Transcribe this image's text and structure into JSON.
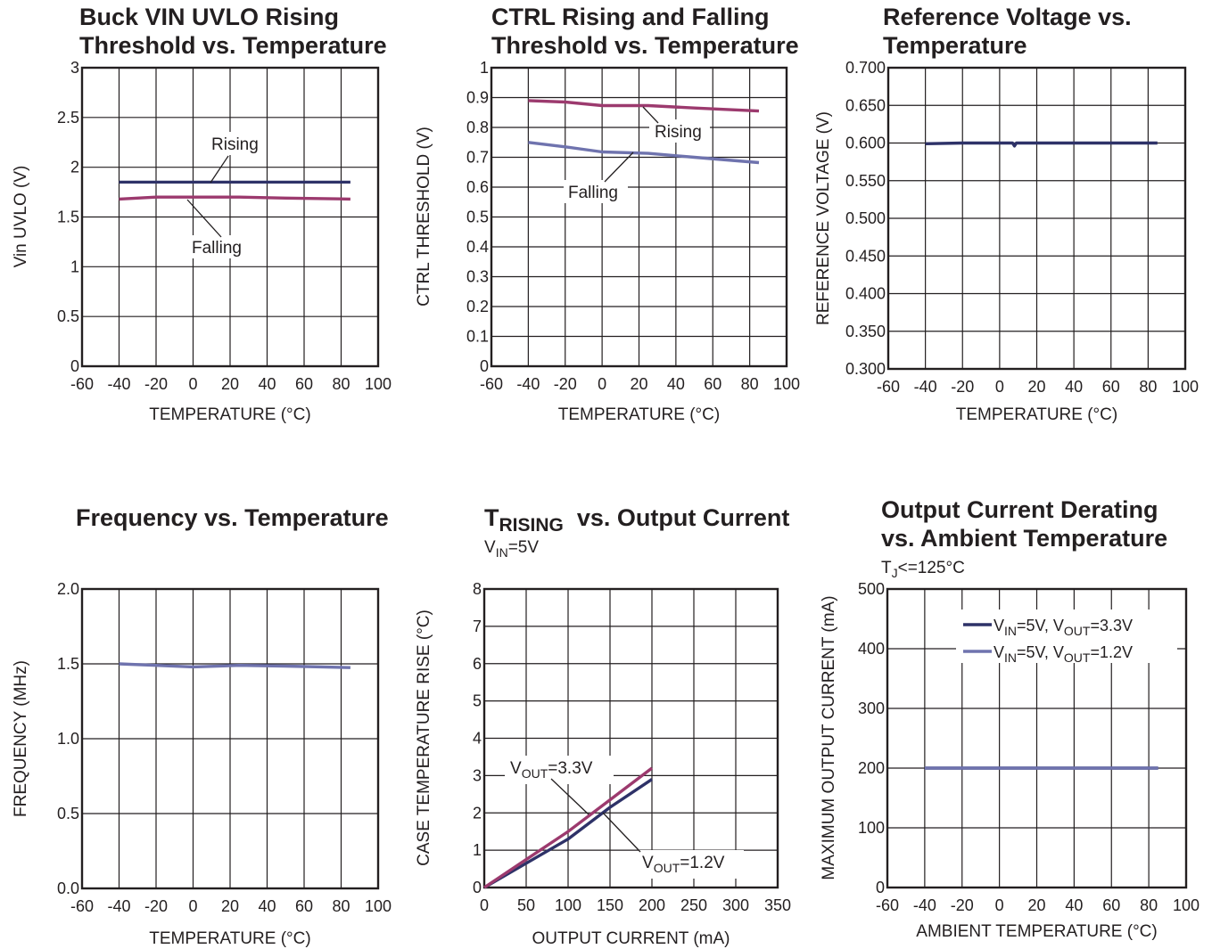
{
  "chart_data": [
    {
      "type": "line",
      "title": "Buck VIN UVLO Rising Threshold vs. Temperature",
      "title_lines": [
        "Buck VIN UVLO Rising",
        "Threshold vs. Temperature"
      ],
      "subtitle": "",
      "xlabel": "TEMPERATURE (°C)",
      "ylabel": "Vin UVLO (V)",
      "xlim": [
        -60,
        100
      ],
      "ylim": [
        0,
        3
      ],
      "x_ticks": [
        -60,
        -40,
        -20,
        0,
        20,
        40,
        60,
        80,
        100
      ],
      "x_tick_labels": [
        "-60",
        "-40",
        "-20",
        "0",
        "20",
        "40",
        "60",
        "80",
        "100"
      ],
      "y_ticks": [
        0,
        0.5,
        1,
        1.5,
        2,
        2.5,
        3
      ],
      "y_tick_labels": [
        "0",
        "0.5",
        "1",
        "1.5",
        "2",
        "2.5",
        "3"
      ],
      "grid": true,
      "annotations": [
        "Rising",
        "Falling"
      ],
      "series": [
        {
          "name": "Rising",
          "color": "#2e3268",
          "x": [
            -40,
            -20,
            0,
            25,
            50,
            85
          ],
          "y": [
            1.85,
            1.85,
            1.85,
            1.85,
            1.85,
            1.85
          ]
        },
        {
          "name": "Falling",
          "color": "#9c3a6e",
          "x": [
            -40,
            -20,
            0,
            25,
            50,
            85
          ],
          "y": [
            1.68,
            1.7,
            1.7,
            1.7,
            1.69,
            1.68
          ]
        }
      ]
    },
    {
      "type": "line",
      "title": "CTRL Rising and Falling Threshold vs. Temperature",
      "title_lines": [
        "CTRL Rising and Falling",
        "Threshold vs. Temperature"
      ],
      "subtitle": "",
      "xlabel": "TEMPERATURE (°C)",
      "ylabel": "CTRL THRESHOLD (V)",
      "xlim": [
        -60,
        100
      ],
      "ylim": [
        0,
        1
      ],
      "x_ticks": [
        -60,
        -40,
        -20,
        0,
        20,
        40,
        60,
        80,
        100
      ],
      "x_tick_labels": [
        "-60",
        "-40",
        "-20",
        "0",
        "20",
        "40",
        "60",
        "80",
        "100"
      ],
      "y_ticks": [
        0,
        0.1,
        0.2,
        0.3,
        0.4,
        0.5,
        0.6,
        0.7,
        0.8,
        0.9,
        1
      ],
      "y_tick_labels": [
        "0",
        "0.1",
        "0.2",
        "0.3",
        "0.4",
        "0.5",
        "0.6",
        "0.7",
        "0.8",
        "0.9",
        "1"
      ],
      "grid": true,
      "annotations": [
        "Rising",
        "Falling"
      ],
      "series": [
        {
          "name": "Rising",
          "color": "#9c3a6e",
          "x": [
            -40,
            -20,
            0,
            25,
            50,
            85
          ],
          "y": [
            0.89,
            0.885,
            0.873,
            0.873,
            0.865,
            0.855
          ]
        },
        {
          "name": "Falling",
          "color": "#6f73ae",
          "x": [
            -40,
            -20,
            0,
            25,
            50,
            85
          ],
          "y": [
            0.75,
            0.735,
            0.718,
            0.713,
            0.7,
            0.682
          ]
        }
      ]
    },
    {
      "type": "line",
      "title": "Reference Voltage vs. Temperature",
      "title_lines": [
        "Reference Voltage vs.",
        "Temperature"
      ],
      "subtitle": "",
      "xlabel": "TEMPERATURE (°C)",
      "ylabel": "REFERENCE VOLTAGE (V)",
      "xlim": [
        -60,
        100
      ],
      "ylim": [
        0.3,
        0.7
      ],
      "x_ticks": [
        -60,
        -40,
        -20,
        0,
        20,
        40,
        60,
        80,
        100
      ],
      "x_tick_labels": [
        "-60",
        "-40",
        "-20",
        "0",
        "20",
        "40",
        "60",
        "80",
        "100"
      ],
      "y_ticks": [
        0.3,
        0.35,
        0.4,
        0.45,
        0.5,
        0.55,
        0.6,
        0.65,
        0.7
      ],
      "y_tick_labels": [
        "0.300",
        "0.350",
        "0.400",
        "0.450",
        "0.500",
        "0.550",
        "0.600",
        "0.650",
        "0.700"
      ],
      "grid": true,
      "annotations": [],
      "series": [
        {
          "name": "",
          "color": "#2e3268",
          "x": [
            -40,
            -20,
            0,
            7,
            8,
            9,
            25,
            50,
            85
          ],
          "y": [
            0.599,
            0.6,
            0.6,
            0.6,
            0.596,
            0.6,
            0.6,
            0.6,
            0.6
          ]
        }
      ]
    },
    {
      "type": "line",
      "title": "Frequency vs. Temperature",
      "title_lines": [
        "Frequency vs. Temperature"
      ],
      "subtitle": "",
      "xlabel": "TEMPERATURE (°C)",
      "ylabel": "FREQUENCY (MHz)",
      "xlim": [
        -60,
        100
      ],
      "ylim": [
        0,
        2
      ],
      "x_ticks": [
        -60,
        -40,
        -20,
        0,
        20,
        40,
        60,
        80,
        100
      ],
      "x_tick_labels": [
        "-60",
        "-40",
        "-20",
        "0",
        "20",
        "40",
        "60",
        "80",
        "100"
      ],
      "y_ticks": [
        0,
        0.5,
        1,
        1.5,
        2
      ],
      "y_tick_labels": [
        "0.0",
        "0.5",
        "1.0",
        "1.5",
        "2.0"
      ],
      "grid": true,
      "annotations": [],
      "series": [
        {
          "name": "",
          "color": "#6f73ae",
          "x": [
            -40,
            -20,
            0,
            25,
            50,
            85
          ],
          "y": [
            1.5,
            1.49,
            1.48,
            1.49,
            1.485,
            1.475
          ]
        }
      ]
    },
    {
      "type": "line",
      "title": "TRISING vs. Output Current",
      "title_main": "T",
      "title_sub": "RISING",
      "title_rest": "vs. Output Current",
      "subtitle": "VIN=5V",
      "subtitle_parts": {
        "pre": "V",
        "sub": "IN",
        "post": "=5V"
      },
      "xlabel": "OUTPUT CURRENT (mA)",
      "ylabel": "CASE TEMPERATURE RISE (°C)",
      "xlim": [
        0,
        350
      ],
      "ylim": [
        0,
        8
      ],
      "x_ticks": [
        0,
        50,
        100,
        150,
        200,
        250,
        300,
        350
      ],
      "x_tick_labels": [
        "0",
        "50",
        "100",
        "150",
        "200",
        "250",
        "300",
        "350"
      ],
      "y_ticks": [
        0,
        1,
        2,
        3,
        4,
        5,
        6,
        7,
        8
      ],
      "y_tick_labels": [
        "0",
        "1",
        "2",
        "3",
        "4",
        "5",
        "6",
        "7",
        "8"
      ],
      "grid": true,
      "annotations": [
        "VOUT=3.3V",
        "VOUT=1.2V"
      ],
      "annotation_parts": [
        {
          "pre": "V",
          "sub": "OUT",
          "post": "=3.3V"
        },
        {
          "pre": "V",
          "sub": "OUT",
          "post": "=1.2V"
        }
      ],
      "series": [
        {
          "name": "VOUT=3.3V",
          "color": "#2e3268",
          "x": [
            0,
            50,
            100,
            150,
            200
          ],
          "y": [
            0,
            0.65,
            1.3,
            2.15,
            2.9
          ]
        },
        {
          "name": "VOUT=1.2V",
          "color": "#9c3a6e",
          "x": [
            0,
            50,
            100,
            150,
            200
          ],
          "y": [
            0,
            0.75,
            1.5,
            2.35,
            3.2
          ]
        }
      ]
    },
    {
      "type": "line",
      "title": "Output Current Derating vs. Ambient Temperature",
      "title_lines": [
        "Output Current Derating",
        "vs. Ambient Temperature"
      ],
      "subtitle": "TJ<=125°C",
      "subtitle_parts": {
        "pre": "T",
        "sub": "J",
        "post": "<=125°C"
      },
      "xlabel": "AMBIENT TEMPERATURE (°C)",
      "ylabel": "MAXIMUM OUTPUT CURRENT (mA)",
      "xlim": [
        -60,
        100
      ],
      "ylim": [
        0,
        500
      ],
      "x_ticks": [
        -60,
        -40,
        -20,
        0,
        20,
        40,
        60,
        80,
        100
      ],
      "x_tick_labels": [
        "-60",
        "-40",
        "-20",
        "0",
        "20",
        "40",
        "60",
        "80",
        "100"
      ],
      "y_ticks": [
        0,
        100,
        200,
        300,
        400,
        500
      ],
      "y_tick_labels": [
        "0",
        "100",
        "200",
        "300",
        "400",
        "500"
      ],
      "grid": true,
      "legend_position": "top-right",
      "annotations": [],
      "series": [
        {
          "name": "VIN=5V, VOUT=3.3V",
          "name_parts": [
            {
              "pre": "V",
              "sub": "IN",
              "post": "=5V, "
            },
            {
              "pre": "V",
              "sub": "OUT",
              "post": "=3.3V"
            }
          ],
          "color": "#2e3268",
          "x": [
            -40,
            0,
            40,
            85
          ],
          "y": [
            200,
            200,
            200,
            200
          ]
        },
        {
          "name": "VIN=5V, VOUT=1.2V",
          "name_parts": [
            {
              "pre": "V",
              "sub": "IN",
              "post": "=5V, "
            },
            {
              "pre": "V",
              "sub": "OUT",
              "post": "=1.2V"
            }
          ],
          "color": "#6f73ae",
          "x": [
            -40,
            0,
            40,
            85
          ],
          "y": [
            200,
            200,
            200,
            200
          ]
        }
      ]
    }
  ]
}
